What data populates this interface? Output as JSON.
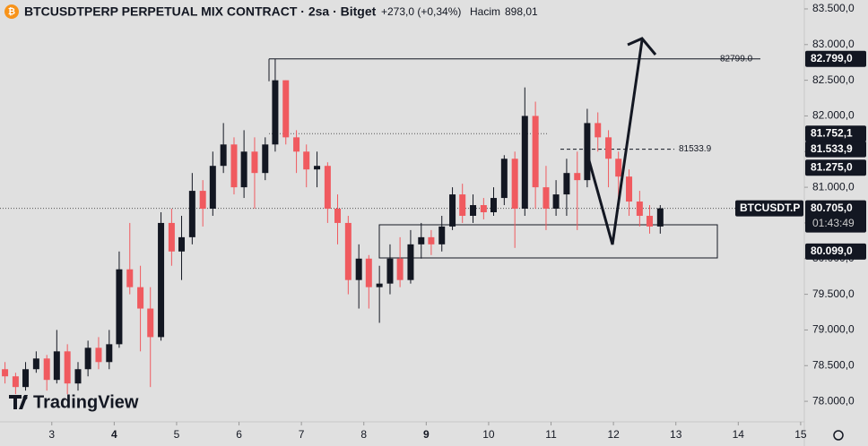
{
  "header": {
    "title": "BTCUSDTPERP PERPETUAL MIX CONTRACT · 2sa · Bitget",
    "change": "+273,0 (+0,34%)",
    "volume_label": "Hacim",
    "volume": "898,01"
  },
  "logo": "TradingView",
  "chart_data": {
    "type": "candlestick",
    "x": [
      2.25,
      2.42,
      2.58,
      2.75,
      2.92,
      3.08,
      3.25,
      3.42,
      3.58,
      3.75,
      3.92,
      4.08,
      4.25,
      4.42,
      4.58,
      4.75,
      4.92,
      5.08,
      5.25,
      5.42,
      5.58,
      5.75,
      5.92,
      6.08,
      6.25,
      6.42,
      6.58,
      6.75,
      6.92,
      7.08,
      7.25,
      7.42,
      7.58,
      7.75,
      7.92,
      8.08,
      8.25,
      8.42,
      8.58,
      8.75,
      8.92,
      9.08,
      9.25,
      9.42,
      9.58,
      9.75,
      9.92,
      10.08,
      10.25,
      10.42,
      10.58,
      10.75,
      10.92,
      11.08,
      11.25,
      11.42,
      11.58,
      11.75,
      11.92,
      12.08,
      12.25,
      12.42,
      12.58,
      12.75
    ],
    "open": [
      78450,
      78350,
      78200,
      78450,
      78600,
      78300,
      78700,
      78250,
      78450,
      78750,
      78550,
      78800,
      79850,
      79600,
      79300,
      78900,
      80500,
      80100,
      80300,
      80950,
      80700,
      81300,
      81600,
      81000,
      81500,
      81200,
      81600,
      82500,
      81700,
      81500,
      81250,
      81300,
      80700,
      80500,
      79700,
      80000,
      79600,
      79650,
      80000,
      79700,
      80200,
      80300,
      80200,
      80450,
      80900,
      80600,
      80750,
      80650,
      80850,
      81400,
      80700,
      82000,
      81000,
      80700,
      80900,
      81200,
      81100,
      81900,
      81700,
      81400,
      81150,
      80800,
      80600,
      80450
    ],
    "high": [
      78550,
      78400,
      78550,
      78700,
      78650,
      79000,
      78800,
      78550,
      78850,
      78900,
      79000,
      80100,
      80500,
      79900,
      79600,
      80650,
      80700,
      80600,
      81200,
      81100,
      81500,
      81900,
      81700,
      81800,
      81700,
      81700,
      82799,
      82500,
      81800,
      81600,
      81500,
      81350,
      80900,
      80600,
      80200,
      80050,
      79900,
      80200,
      80300,
      80400,
      80500,
      80400,
      80600,
      81000,
      81050,
      80900,
      80850,
      81000,
      81450,
      81500,
      82400,
      82200,
      81300,
      81100,
      81400,
      81500,
      82100,
      82050,
      81800,
      81500,
      81250,
      80950,
      80750,
      80750
    ],
    "low": [
      78250,
      78100,
      78150,
      78400,
      78150,
      78250,
      78100,
      78150,
      78350,
      78450,
      78450,
      78750,
      79500,
      78700,
      78200,
      78850,
      79900,
      79700,
      80200,
      80450,
      80600,
      81200,
      80900,
      80850,
      80700,
      81100,
      81500,
      81600,
      81200,
      81000,
      81000,
      80500,
      80200,
      79500,
      79300,
      79300,
      79100,
      79500,
      79600,
      79650,
      80000,
      80050,
      80100,
      80400,
      80500,
      80500,
      80550,
      80600,
      80750,
      80150,
      80600,
      80700,
      80400,
      80600,
      80600,
      80400,
      81000,
      81500,
      81000,
      80800,
      80600,
      80450,
      80350,
      80350
    ],
    "close": [
      78350,
      78200,
      78450,
      78600,
      78300,
      78700,
      78250,
      78450,
      78750,
      78550,
      78800,
      79850,
      79600,
      79300,
      78900,
      80500,
      80100,
      80300,
      80950,
      80700,
      81300,
      81600,
      81000,
      81500,
      81200,
      81600,
      82500,
      81700,
      81500,
      81250,
      81300,
      80700,
      80500,
      79700,
      80000,
      79600,
      79650,
      80000,
      79700,
      80200,
      80300,
      80200,
      80450,
      80900,
      80600,
      80750,
      80650,
      80850,
      81400,
      80700,
      82000,
      81000,
      80700,
      80900,
      81200,
      81100,
      81900,
      81700,
      81400,
      81150,
      80800,
      80600,
      80450,
      80705
    ],
    "up_color": "#131722",
    "down_color": "#f05a5f",
    "xlim": [
      2.17,
      15.03
    ],
    "xticks": [
      3,
      4,
      5,
      6,
      7,
      8,
      9,
      10,
      11,
      12,
      13,
      14,
      15
    ],
    "ylim": [
      77725,
      83625
    ],
    "yticks": [
      {
        "value": 83500,
        "label": "83.500,0"
      },
      {
        "value": 83000,
        "label": "83.000,0"
      },
      {
        "value": 82500,
        "label": "82.500,0"
      },
      {
        "value": 82000,
        "label": "82.000,0"
      },
      {
        "value": 81500,
        "label": "81.500,0"
      },
      {
        "value": 81000,
        "label": "81.000,0"
      },
      {
        "value": 80500,
        "label": "80.500,0"
      },
      {
        "value": 80000,
        "label": "80.000,0"
      },
      {
        "value": 79500,
        "label": "79.500,0"
      },
      {
        "value": 79000,
        "label": "79.000,0"
      },
      {
        "value": 78500,
        "label": "78.500,0"
      },
      {
        "value": 78000,
        "label": "78.000,0"
      }
    ],
    "price_tags": [
      {
        "value": 82799,
        "label": "82.799,0"
      },
      {
        "value": 81752.1,
        "label": "81.752,1"
      },
      {
        "value": 81533.9,
        "label": "81.533,9"
      },
      {
        "value": 81275,
        "label": "81.275,0"
      },
      {
        "value": 80705,
        "label": "80.705,0"
      },
      {
        "value": 80099,
        "label": "80.099,0"
      }
    ],
    "symbol_tag": "BTCUSDT.P",
    "countdown": "01:43:49",
    "annotations": [
      {
        "value": 82799,
        "label": "82799.0"
      },
      {
        "value": 81533.9,
        "label": "81533.9"
      }
    ]
  }
}
